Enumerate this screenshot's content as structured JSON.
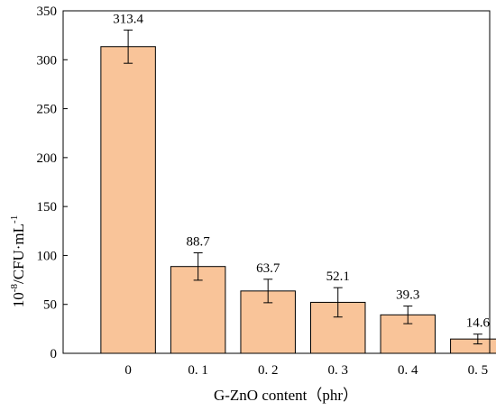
{
  "chart_data": {
    "type": "bar",
    "categories": [
      "0",
      "0. 1",
      "0. 2",
      "0. 3",
      "0. 4",
      "0. 5"
    ],
    "values": [
      313.4,
      88.7,
      63.7,
      52.1,
      39.3,
      14.6
    ],
    "error": [
      17,
      14,
      12,
      15,
      9,
      5
    ],
    "data_labels": [
      "313.4",
      "88.7",
      "63.7",
      "52.1",
      "39.3",
      "14.6"
    ],
    "xlabel": "G-ZnO content（phr）",
    "ylabel": {
      "base": "10",
      "base_exp": "-8",
      "unit": "/CFU·mL",
      "unit_exp": "-1"
    },
    "ylim": [
      0,
      350
    ],
    "yticks": [
      0,
      50,
      100,
      150,
      200,
      250,
      300,
      350
    ],
    "ytick_labels": [
      "0",
      "50",
      "100",
      "150",
      "200",
      "250",
      "300",
      "350"
    ],
    "bar_color": "#f9c499",
    "edge_color": "#000000",
    "grid": false
  }
}
